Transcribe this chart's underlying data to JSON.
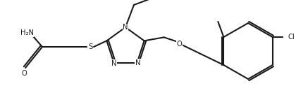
{
  "bg_color": "#ffffff",
  "line_color": "#1a1a1a",
  "line_width": 1.5,
  "font_size": 7.2,
  "figsize": [
    4.37,
    1.33
  ],
  "dpi": 100,
  "xlim": [
    0,
    437
  ],
  "ylim": [
    0,
    133
  ]
}
